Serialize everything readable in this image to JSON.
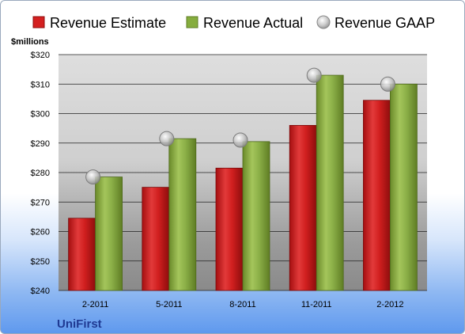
{
  "chart_data": {
    "type": "bar",
    "unit_label": "$millions",
    "company": "UniFirst",
    "categories": [
      "2-2011",
      "5-2011",
      "8-2011",
      "11-2011",
      "2-2012"
    ],
    "series": [
      {
        "name": "Revenue Estimate",
        "kind": "bar",
        "color": "#d42020",
        "values": [
          264.5,
          275,
          281.5,
          296,
          304.5
        ]
      },
      {
        "name": "Revenue Actual",
        "kind": "bar",
        "color": "#86ad3e",
        "values": [
          278.5,
          291.5,
          290.5,
          313,
          310
        ]
      },
      {
        "name": "Revenue GAAP",
        "kind": "marker",
        "color": "#b8b8b8",
        "values": [
          278.5,
          291.5,
          291,
          313,
          310
        ]
      }
    ],
    "ylim": [
      240,
      320
    ],
    "yticks": [
      "$240",
      "$250",
      "$260",
      "$270",
      "$280",
      "$290",
      "$300",
      "$310",
      "$320"
    ],
    "ytick_values": [
      240,
      250,
      260,
      270,
      280,
      290,
      300,
      310,
      320
    ],
    "grid": true,
    "legend_position": "top"
  }
}
